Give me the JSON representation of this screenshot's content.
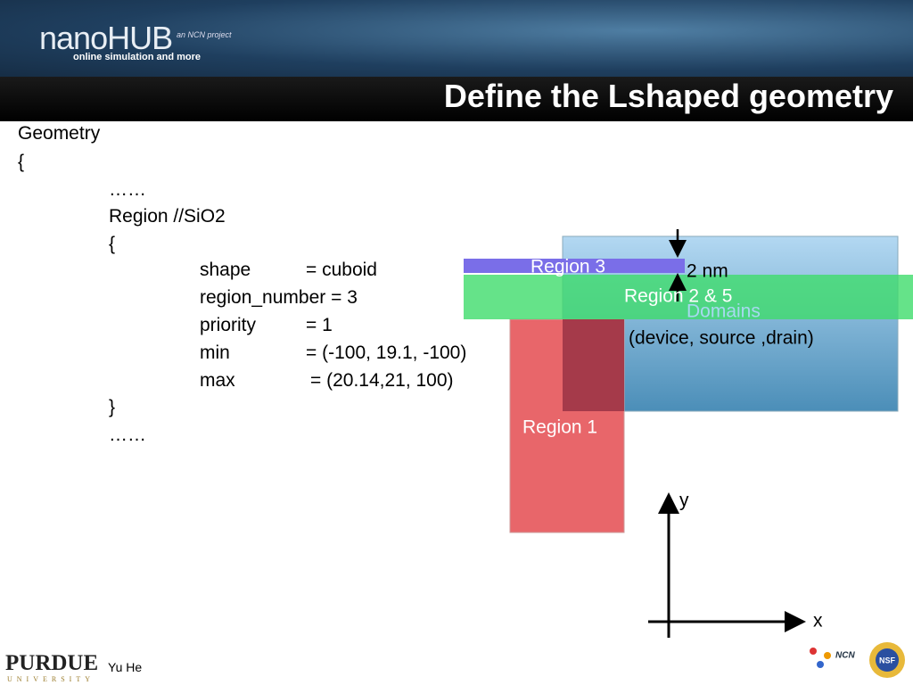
{
  "header": {
    "logo": "nanoHUB",
    "tagline": "online simulation and more",
    "project": "an NCN project",
    "title": "Define the Lshaped geometry"
  },
  "code": {
    "block": "Geometry",
    "open": "{",
    "ellipsis_top": "……",
    "region": "Region //SiO2",
    "region_open": "{",
    "fields": [
      [
        "shape",
        "= cuboid"
      ],
      [
        "region_number = 3"
      ],
      [
        "priority",
        "= 1"
      ],
      [
        "min",
        "= (-100, 19.1, -100)"
      ],
      [
        "max",
        "= (20.14,21, 100)"
      ]
    ],
    "region_close": "}",
    "ellipsis_bottom": "……"
  },
  "diagram": {
    "region3": "Region 3",
    "thickness": "2 nm",
    "region25": "Region 2 & 5",
    "domains": "Domains",
    "domains_detail": "(device, source ,drain)",
    "region1": "Region 1",
    "y_axis": "y",
    "x_axis": "x"
  },
  "footer": {
    "university": "PURDUE",
    "university_sub": "UNIVERSITY",
    "author": "Yu He",
    "ncn": "NCN",
    "nsf": "NSF"
  }
}
